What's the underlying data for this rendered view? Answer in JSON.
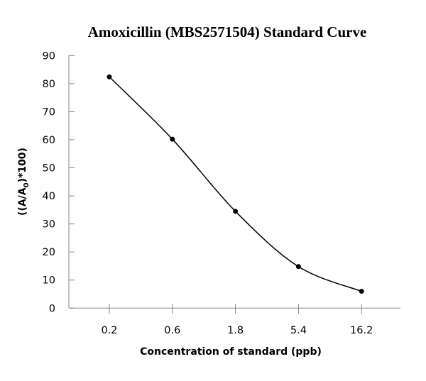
{
  "chart_data": {
    "type": "line",
    "title": "Amoxicillin (MBS2571504) Standard Curve",
    "xlabel": "Concentration of standard (ppb)",
    "ylabel": "((A/A0)*100)",
    "ylabel_parts": {
      "prefix": "((A/A",
      "subscript": "0",
      "suffix": ")*100)"
    },
    "categories": [
      "0.2",
      "0.6",
      "1.8",
      "5.4",
      "16.2"
    ],
    "values": [
      82.4,
      60.2,
      34.5,
      14.8,
      6.0
    ],
    "ylim": [
      0,
      90
    ],
    "yticks": [
      "0",
      "10",
      "20",
      "30",
      "40",
      "50",
      "60",
      "70",
      "80",
      "90"
    ],
    "smooth": true,
    "markers": true,
    "grid": false,
    "colors": {
      "line": "#000000",
      "axis": "#868686"
    }
  }
}
